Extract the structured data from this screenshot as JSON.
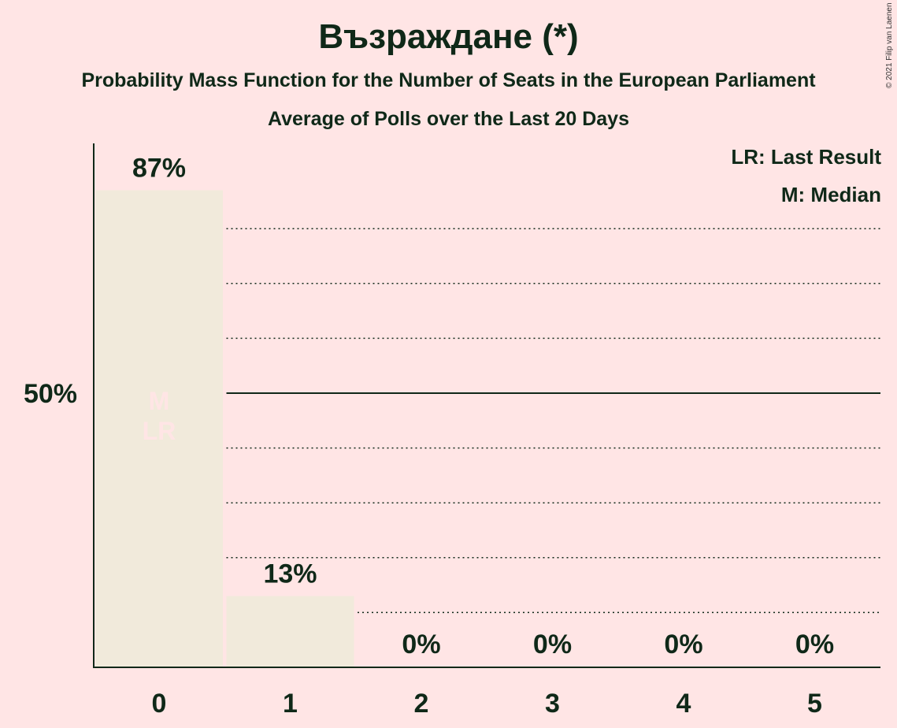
{
  "title": "Възраждане (*)",
  "subtitle": "Probability Mass Function for the Number of Seats in the European Parliament",
  "subtitle2": "Average of Polls over the Last 20 Days",
  "copyright": "© 2021 Filip van Laenen",
  "legend": {
    "last_result": "LR: Last Result",
    "median": "M: Median"
  },
  "colors": {
    "background": "#ffe5e5",
    "bar": "#f1eadb",
    "text": "#0f2818",
    "marker_text": "#ffe5e5"
  },
  "chart_data": {
    "type": "bar",
    "categories": [
      "0",
      "1",
      "2",
      "3",
      "4",
      "5"
    ],
    "values": [
      87,
      13,
      0,
      0,
      0,
      0
    ],
    "value_labels": [
      "87%",
      "13%",
      "0%",
      "0%",
      "0%",
      "0%"
    ],
    "ylim": [
      0,
      95
    ],
    "yticks": [
      {
        "value": 50,
        "label": "50%"
      }
    ],
    "gridlines": [
      10,
      20,
      30,
      40,
      60,
      70,
      80
    ],
    "median_line": 50,
    "markers": {
      "category": "0",
      "labels": [
        "M",
        "LR"
      ]
    }
  }
}
